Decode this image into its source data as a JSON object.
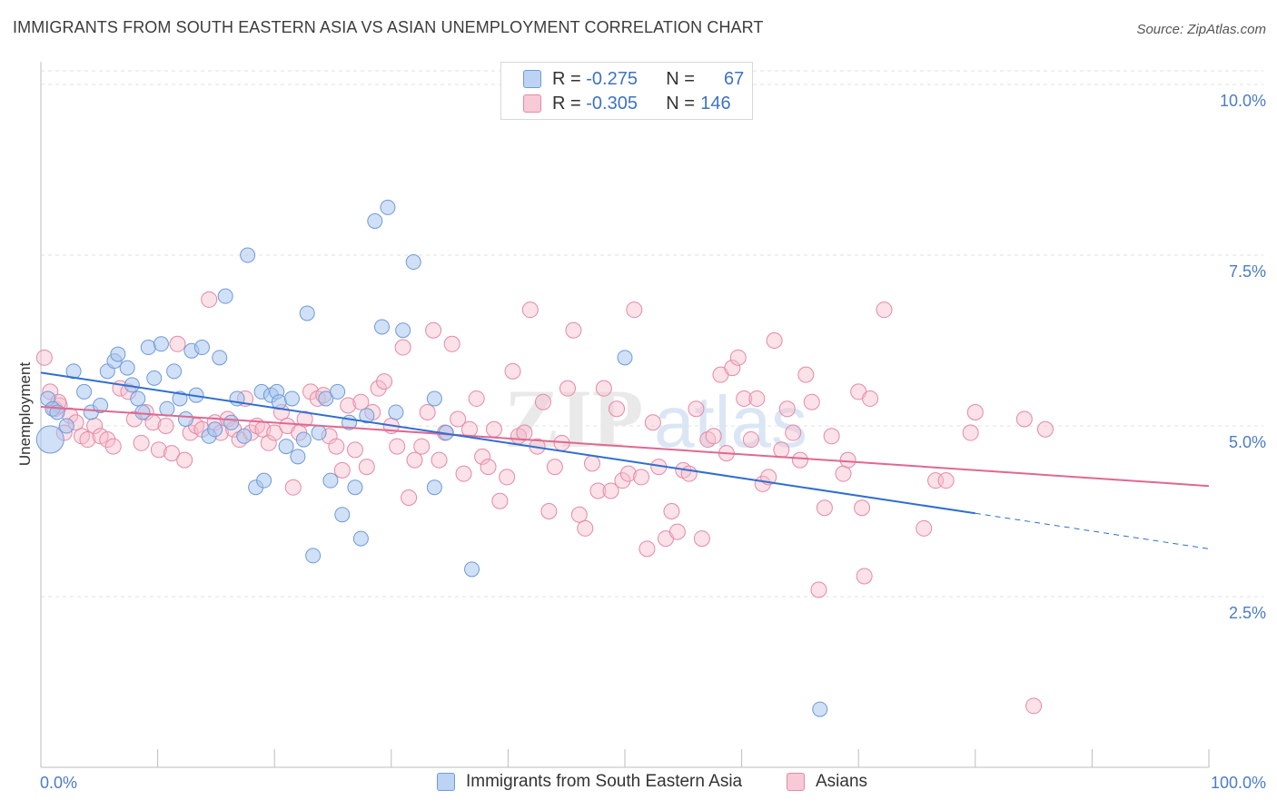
{
  "header": {
    "title": "IMMIGRANTS FROM SOUTH EASTERN ASIA VS ASIAN UNEMPLOYMENT CORRELATION CHART",
    "source": "Source: ZipAtlas.com"
  },
  "legend": {
    "rows": [
      {
        "r_label": "R =",
        "r_value": "-0.275",
        "n_label": "N =",
        "n_value": "67"
      },
      {
        "r_label": "R =",
        "r_value": "-0.305",
        "n_label": "N =",
        "n_value": "146"
      }
    ]
  },
  "colors": {
    "blue_fill": "#a9c6ee",
    "blue_stroke": "#6f9ad8",
    "blue_line": "#2f6fcf",
    "pink_fill": "#f6bccd",
    "pink_stroke": "#e48aa6",
    "pink_line": "#e06890",
    "axis_text": "#4a7cc9",
    "grid": "#e2e2e2"
  },
  "chart_data": {
    "type": "scatter",
    "title": "IMMIGRANTS FROM SOUTH EASTERN ASIA VS ASIAN UNEMPLOYMENT CORRELATION CHART",
    "xlabel": "",
    "ylabel": "Unemployment",
    "xlim": [
      0,
      100
    ],
    "ylim": [
      0,
      10.2
    ],
    "y_ticks": [
      {
        "value": 2.5,
        "label": "2.5%"
      },
      {
        "value": 5.0,
        "label": "5.0%"
      },
      {
        "value": 7.5,
        "label": "7.5%"
      },
      {
        "value": 10.0,
        "label": "10.0%"
      }
    ],
    "x_tick_labels": [
      {
        "value": 0,
        "label": "0.0%"
      },
      {
        "value": 100,
        "label": "100.0%"
      }
    ],
    "grid": true,
    "legend_position": "top-center",
    "series": [
      {
        "name": "Immigrants from South Eastern Asia",
        "color": "blue",
        "points": [
          [
            0.6,
            5.4
          ],
          [
            1.0,
            5.25
          ],
          [
            1.4,
            5.2
          ],
          [
            2.2,
            5.0
          ],
          [
            2.8,
            5.8
          ],
          [
            3.7,
            5.5
          ],
          [
            4.3,
            5.2
          ],
          [
            5.1,
            5.3
          ],
          [
            5.7,
            5.8
          ],
          [
            6.3,
            5.95
          ],
          [
            6.6,
            6.05
          ],
          [
            7.4,
            5.85
          ],
          [
            7.8,
            5.6
          ],
          [
            8.3,
            5.4
          ],
          [
            8.7,
            5.2
          ],
          [
            9.2,
            6.15
          ],
          [
            9.7,
            5.7
          ],
          [
            10.3,
            6.2
          ],
          [
            10.8,
            5.25
          ],
          [
            11.4,
            5.8
          ],
          [
            11.9,
            5.4
          ],
          [
            12.4,
            5.1
          ],
          [
            12.9,
            6.1
          ],
          [
            13.3,
            5.45
          ],
          [
            13.8,
            6.15
          ],
          [
            14.4,
            4.85
          ],
          [
            14.9,
            4.95
          ],
          [
            15.3,
            6.0
          ],
          [
            15.8,
            6.9
          ],
          [
            16.3,
            5.05
          ],
          [
            16.8,
            5.4
          ],
          [
            17.4,
            4.85
          ],
          [
            17.7,
            7.5
          ],
          [
            18.4,
            4.1
          ],
          [
            18.9,
            5.5
          ],
          [
            19.1,
            4.2
          ],
          [
            19.7,
            5.45
          ],
          [
            20.2,
            5.5
          ],
          [
            20.4,
            5.35
          ],
          [
            21.0,
            4.7
          ],
          [
            21.5,
            5.4
          ],
          [
            22.0,
            4.55
          ],
          [
            22.5,
            4.8
          ],
          [
            22.8,
            6.65
          ],
          [
            23.3,
            3.1
          ],
          [
            23.8,
            4.9
          ],
          [
            24.4,
            5.4
          ],
          [
            24.8,
            4.2
          ],
          [
            25.4,
            5.5
          ],
          [
            25.8,
            3.7
          ],
          [
            26.4,
            5.05
          ],
          [
            26.9,
            4.1
          ],
          [
            27.4,
            3.35
          ],
          [
            27.9,
            5.15
          ],
          [
            28.6,
            8.0
          ],
          [
            29.2,
            6.45
          ],
          [
            29.7,
            8.2
          ],
          [
            30.4,
            5.2
          ],
          [
            31.0,
            6.4
          ],
          [
            31.9,
            7.4
          ],
          [
            33.7,
            5.4
          ],
          [
            33.7,
            4.1
          ],
          [
            34.7,
            4.9
          ],
          [
            36.9,
            2.9
          ],
          [
            50.0,
            6.0
          ],
          [
            66.7,
            0.85
          ],
          [
            0.8,
            4.8
          ]
        ],
        "sizes": [
          8,
          8,
          8,
          8,
          8,
          8,
          8,
          8,
          8,
          8,
          8,
          8,
          8,
          8,
          8,
          8,
          8,
          8,
          8,
          8,
          8,
          8,
          8,
          8,
          8,
          8,
          8,
          8,
          8,
          8,
          8,
          8,
          8,
          8,
          8,
          8,
          8,
          8,
          8,
          8,
          8,
          8,
          8,
          8,
          8,
          8,
          8,
          8,
          8,
          8,
          8,
          8,
          8,
          8,
          8,
          8,
          8,
          8,
          8,
          8,
          8,
          8,
          8,
          8,
          8,
          8,
          15
        ],
        "trend": {
          "x0": 0,
          "y0": 5.78,
          "x1": 80,
          "y1": 3.72,
          "dash_to_x": 100,
          "dash_to_y": 3.2
        }
      },
      {
        "name": "Asians",
        "color": "pink",
        "points": [
          [
            0.3,
            6.0
          ],
          [
            0.8,
            5.5
          ],
          [
            1.2,
            5.25
          ],
          [
            1.6,
            5.3
          ],
          [
            2.0,
            4.9
          ],
          [
            2.5,
            5.15
          ],
          [
            3.0,
            5.05
          ],
          [
            3.5,
            4.85
          ],
          [
            4.0,
            4.8
          ],
          [
            4.6,
            5.0
          ],
          [
            5.1,
            4.85
          ],
          [
            5.7,
            4.8
          ],
          [
            6.2,
            4.7
          ],
          [
            6.8,
            5.55
          ],
          [
            7.5,
            5.5
          ],
          [
            8.0,
            5.1
          ],
          [
            8.6,
            4.75
          ],
          [
            9.0,
            5.2
          ],
          [
            9.6,
            5.05
          ],
          [
            10.1,
            4.65
          ],
          [
            10.7,
            5.0
          ],
          [
            11.2,
            4.6
          ],
          [
            11.7,
            6.2
          ],
          [
            12.3,
            4.5
          ],
          [
            12.8,
            4.9
          ],
          [
            13.3,
            5.0
          ],
          [
            13.8,
            4.95
          ],
          [
            14.4,
            6.85
          ],
          [
            14.9,
            5.05
          ],
          [
            15.4,
            4.9
          ],
          [
            16.0,
            5.1
          ],
          [
            16.5,
            4.95
          ],
          [
            17.0,
            4.8
          ],
          [
            17.5,
            5.4
          ],
          [
            18.0,
            4.9
          ],
          [
            18.5,
            5.0
          ],
          [
            19.0,
            4.95
          ],
          [
            19.5,
            4.75
          ],
          [
            20.0,
            4.9
          ],
          [
            20.6,
            5.2
          ],
          [
            21.1,
            5.0
          ],
          [
            21.6,
            4.1
          ],
          [
            22.1,
            4.9
          ],
          [
            22.6,
            5.1
          ],
          [
            23.1,
            5.5
          ],
          [
            23.7,
            5.4
          ],
          [
            24.2,
            5.45
          ],
          [
            24.7,
            4.85
          ],
          [
            25.3,
            4.7
          ],
          [
            25.8,
            4.35
          ],
          [
            26.3,
            5.3
          ],
          [
            26.9,
            4.65
          ],
          [
            27.4,
            5.35
          ],
          [
            27.9,
            4.4
          ],
          [
            28.4,
            5.2
          ],
          [
            28.9,
            5.55
          ],
          [
            29.4,
            5.65
          ],
          [
            30.0,
            5.0
          ],
          [
            30.5,
            4.7
          ],
          [
            31.0,
            6.15
          ],
          [
            31.5,
            3.95
          ],
          [
            32.0,
            4.5
          ],
          [
            32.6,
            4.7
          ],
          [
            33.1,
            5.2
          ],
          [
            33.6,
            6.4
          ],
          [
            34.1,
            4.5
          ],
          [
            34.6,
            4.9
          ],
          [
            35.2,
            6.2
          ],
          [
            35.7,
            5.1
          ],
          [
            36.2,
            4.3
          ],
          [
            36.7,
            4.95
          ],
          [
            37.3,
            5.4
          ],
          [
            37.8,
            4.55
          ],
          [
            38.3,
            4.4
          ],
          [
            38.8,
            4.95
          ],
          [
            39.3,
            3.9
          ],
          [
            39.9,
            4.25
          ],
          [
            40.4,
            5.8
          ],
          [
            40.9,
            4.85
          ],
          [
            41.4,
            4.9
          ],
          [
            41.9,
            6.7
          ],
          [
            42.5,
            4.7
          ],
          [
            43.0,
            5.35
          ],
          [
            43.5,
            3.75
          ],
          [
            44.0,
            4.4
          ],
          [
            44.6,
            4.75
          ],
          [
            45.1,
            5.55
          ],
          [
            45.6,
            6.4
          ],
          [
            46.1,
            3.7
          ],
          [
            46.6,
            3.5
          ],
          [
            47.2,
            4.45
          ],
          [
            47.7,
            4.05
          ],
          [
            48.2,
            5.55
          ],
          [
            48.8,
            4.05
          ],
          [
            49.3,
            5.25
          ],
          [
            49.8,
            4.2
          ],
          [
            50.3,
            4.3
          ],
          [
            50.8,
            6.7
          ],
          [
            51.4,
            4.25
          ],
          [
            51.9,
            3.2
          ],
          [
            52.4,
            5.05
          ],
          [
            52.9,
            4.4
          ],
          [
            53.5,
            3.35
          ],
          [
            54.0,
            3.75
          ],
          [
            54.5,
            3.45
          ],
          [
            55.0,
            4.35
          ],
          [
            55.5,
            4.3
          ],
          [
            56.1,
            5.25
          ],
          [
            56.6,
            3.35
          ],
          [
            57.1,
            4.8
          ],
          [
            57.6,
            4.85
          ],
          [
            58.2,
            5.75
          ],
          [
            58.7,
            4.6
          ],
          [
            59.2,
            5.85
          ],
          [
            59.7,
            6.0
          ],
          [
            60.2,
            5.4
          ],
          [
            60.8,
            4.8
          ],
          [
            61.3,
            5.4
          ],
          [
            61.8,
            4.15
          ],
          [
            62.3,
            4.25
          ],
          [
            62.8,
            6.25
          ],
          [
            63.4,
            4.65
          ],
          [
            63.9,
            5.25
          ],
          [
            64.4,
            4.9
          ],
          [
            65.0,
            4.5
          ],
          [
            65.5,
            5.75
          ],
          [
            66.0,
            5.35
          ],
          [
            66.6,
            2.6
          ],
          [
            67.1,
            3.8
          ],
          [
            67.7,
            4.85
          ],
          [
            68.7,
            4.3
          ],
          [
            69.1,
            4.5
          ],
          [
            70.0,
            5.5
          ],
          [
            70.3,
            3.8
          ],
          [
            70.5,
            2.8
          ],
          [
            71.0,
            5.4
          ],
          [
            72.2,
            6.7
          ],
          [
            75.6,
            3.5
          ],
          [
            76.6,
            4.2
          ],
          [
            77.5,
            4.2
          ],
          [
            79.6,
            4.9
          ],
          [
            80.0,
            5.2
          ],
          [
            84.2,
            5.1
          ],
          [
            85.0,
            0.9
          ],
          [
            86.0,
            4.95
          ],
          [
            1.5,
            5.35
          ]
        ],
        "trend": {
          "x0": 0,
          "y0": 5.28,
          "x1": 100,
          "y1": 4.12
        }
      }
    ]
  },
  "bottom_legend": {
    "items": [
      {
        "label": "Immigrants from South Eastern Asia"
      },
      {
        "label": "Asians"
      }
    ]
  },
  "watermark": "ZIPatlas"
}
